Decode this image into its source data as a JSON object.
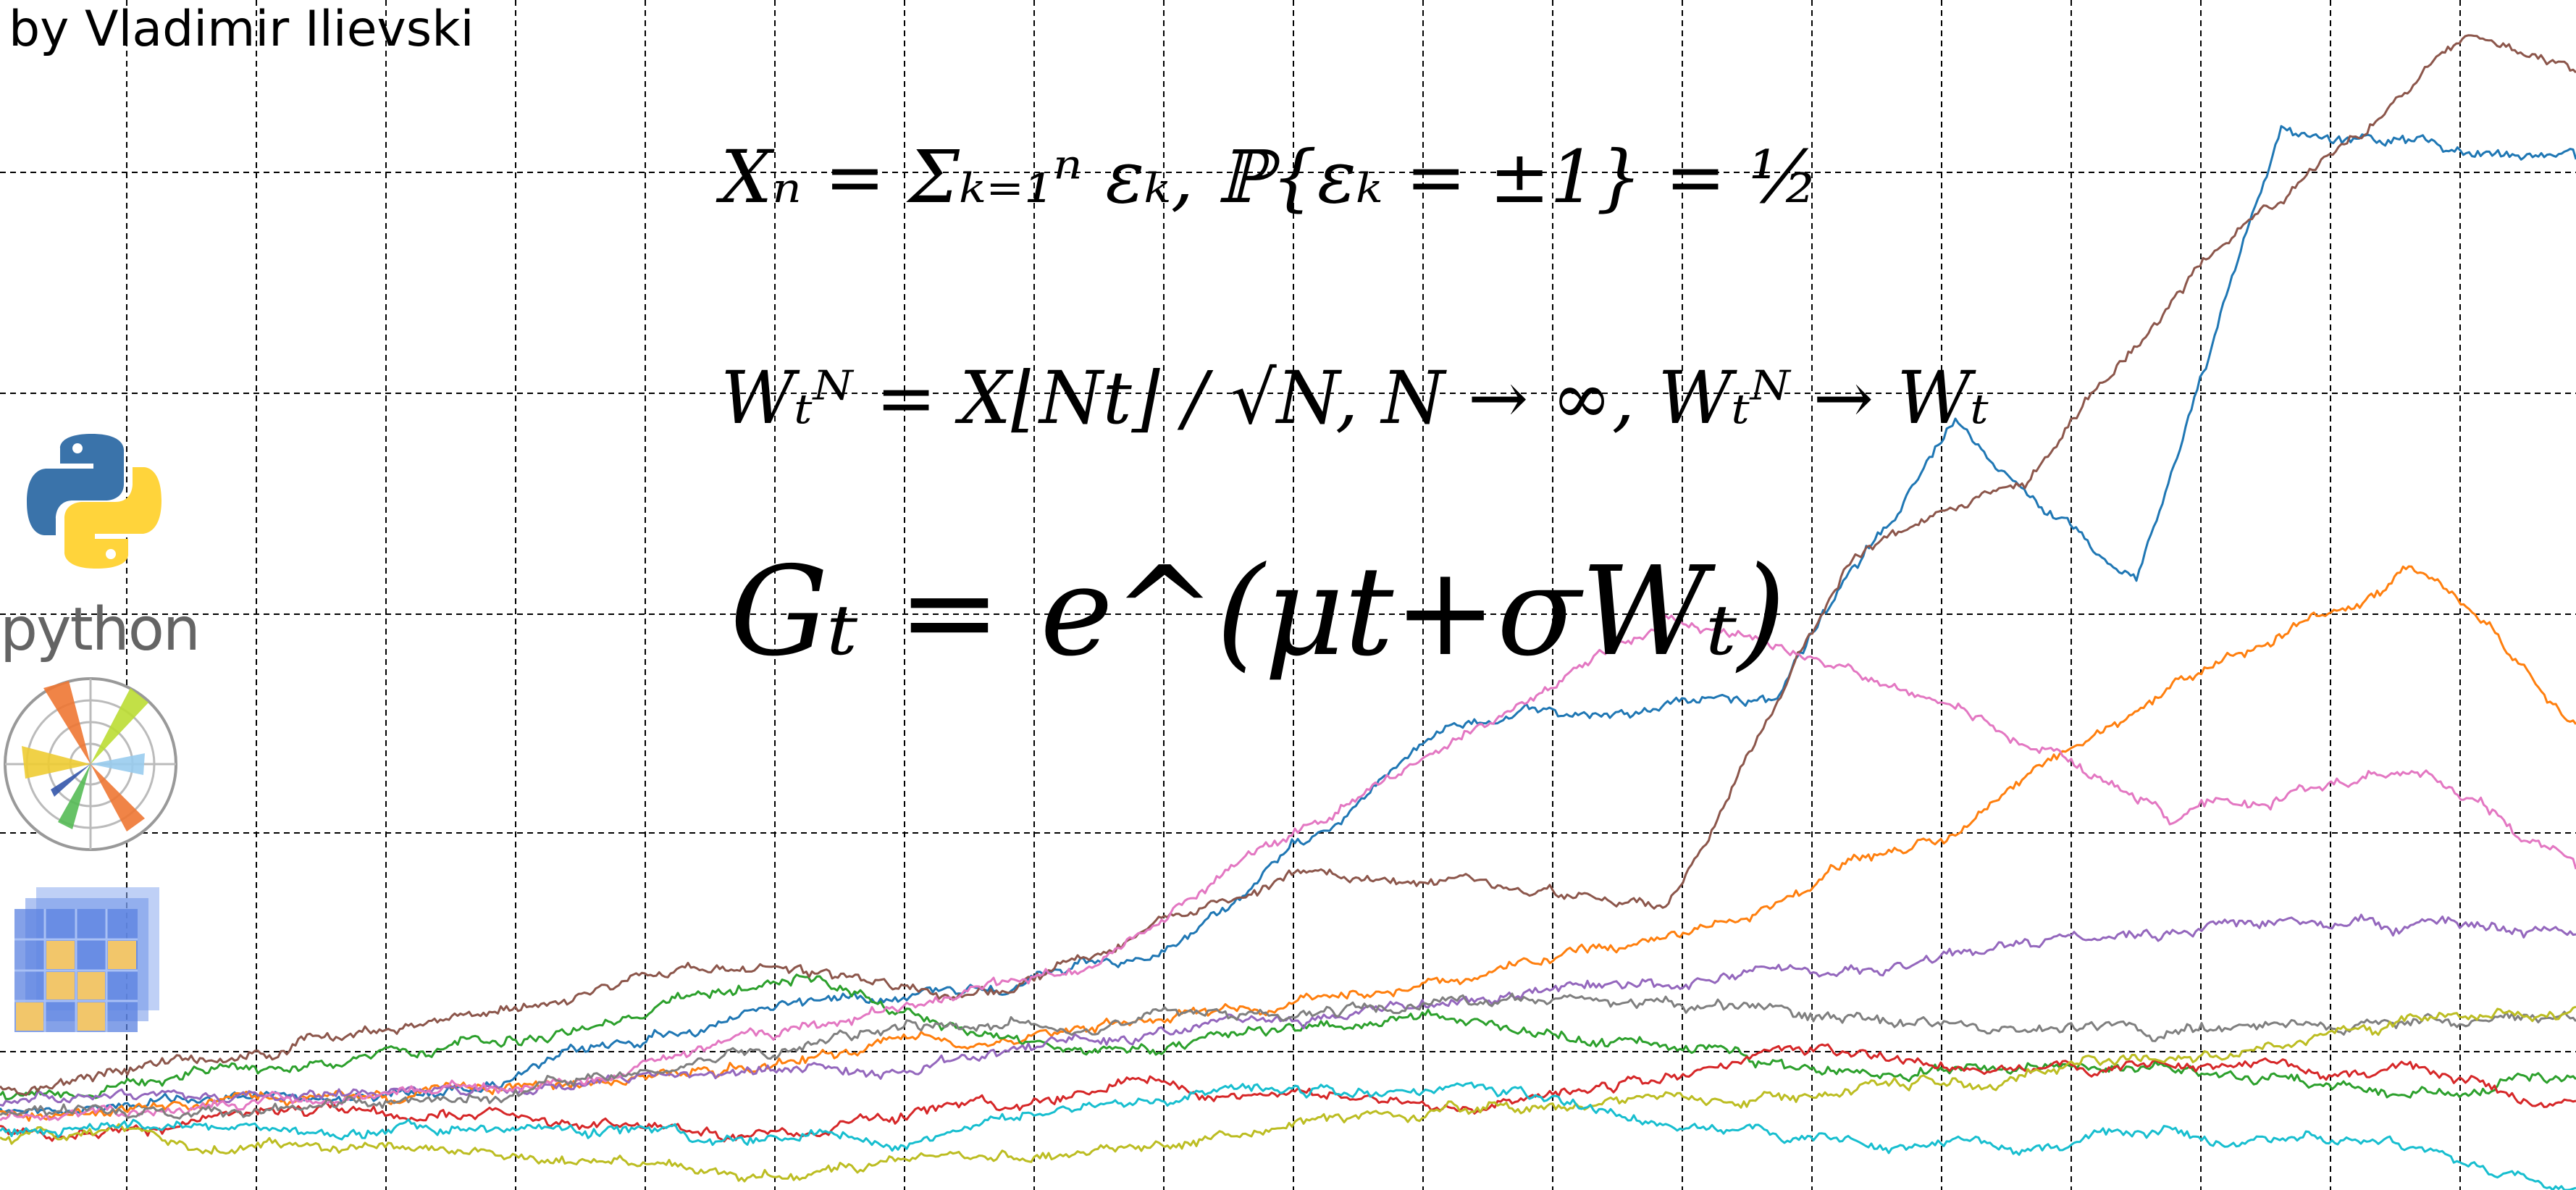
{
  "author": "by Vladimir Ilievski",
  "formulas": {
    "random_walk": "Xₙ = Σₖ₌₁ⁿ εₖ, ℙ{εₖ = ±1} = ½",
    "brownian_limit": "Wₜᴺ = X⌊Nt⌋ / √N, N → ∞, Wₜᴺ → Wₜ",
    "geometric_brownian": "Gₜ = e^(μt+σWₜ)"
  },
  "logos": {
    "python_label": "python",
    "icons": [
      "python-logo-icon",
      "matplotlib-logo-icon",
      "numpy-logo-icon"
    ]
  },
  "chart_data": {
    "type": "line",
    "grid": true,
    "series_colors": [
      "#1f77b4",
      "#ff7f0e",
      "#2ca02c",
      "#d62728",
      "#9467bd",
      "#8c564b",
      "#e377c2",
      "#7f7f7f",
      "#bcbd22",
      "#17becf"
    ]
  }
}
